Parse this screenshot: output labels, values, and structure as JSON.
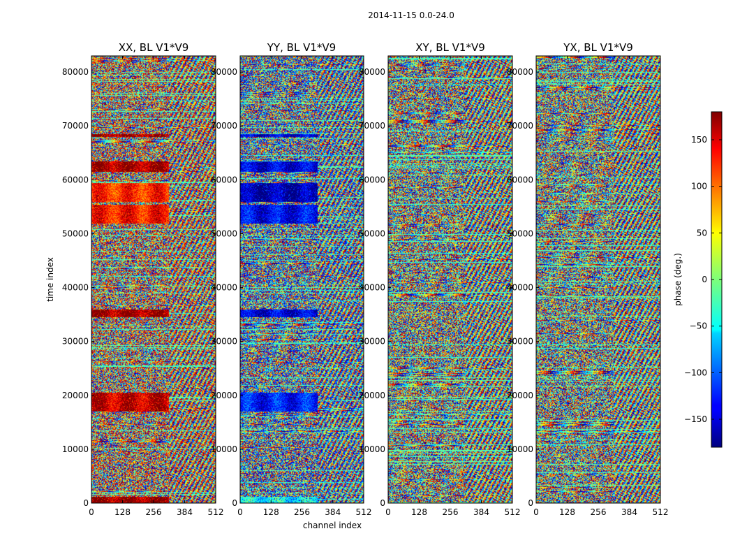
{
  "chart_data": {
    "type": "heatmap",
    "suptitle": "2014-11-15 0.0-24.0",
    "xlabel": "channel index",
    "ylabel": "time index",
    "xlim": [
      0,
      512
    ],
    "ylim": [
      0,
      83000
    ],
    "xticks": [
      0,
      128,
      256,
      384,
      512
    ],
    "yticks": [
      0,
      10000,
      20000,
      30000,
      40000,
      50000,
      60000,
      70000,
      80000
    ],
    "panels": [
      {
        "title": "XX, BL V1*V9",
        "seed": 11,
        "bias": 120,
        "bands": [
          [
            0,
            1200,
            180
          ],
          [
            17000,
            20500,
            160
          ],
          [
            34500,
            36000,
            175
          ],
          [
            52000,
            55500,
            130
          ],
          [
            56000,
            59500,
            120
          ],
          [
            61500,
            63500,
            175
          ],
          [
            68000,
            68600,
            175
          ]
        ]
      },
      {
        "title": "YY, BL V1*V9",
        "seed": 23,
        "bias": -120,
        "bands": [
          [
            0,
            1200,
            -40
          ],
          [
            17000,
            20500,
            -130
          ],
          [
            34500,
            36000,
            -150
          ],
          [
            52000,
            55500,
            -140
          ],
          [
            56000,
            59500,
            -170
          ],
          [
            61500,
            63500,
            -150
          ],
          [
            68000,
            68600,
            -150
          ]
        ]
      },
      {
        "title": "XY, BL V1*V9",
        "seed": 37,
        "bias": 0,
        "bands": []
      },
      {
        "title": "YX, BL V1*V9",
        "seed": 53,
        "bias": 0,
        "bands": []
      }
    ],
    "colorbar": {
      "label": "phase (deg.)",
      "range": [
        -180,
        180
      ],
      "ticks": [
        150,
        100,
        50,
        0,
        -50,
        -100,
        -150
      ],
      "tick_labels": [
        "150",
        "100",
        "50",
        "0",
        "−50",
        "−100",
        "−150"
      ]
    }
  }
}
